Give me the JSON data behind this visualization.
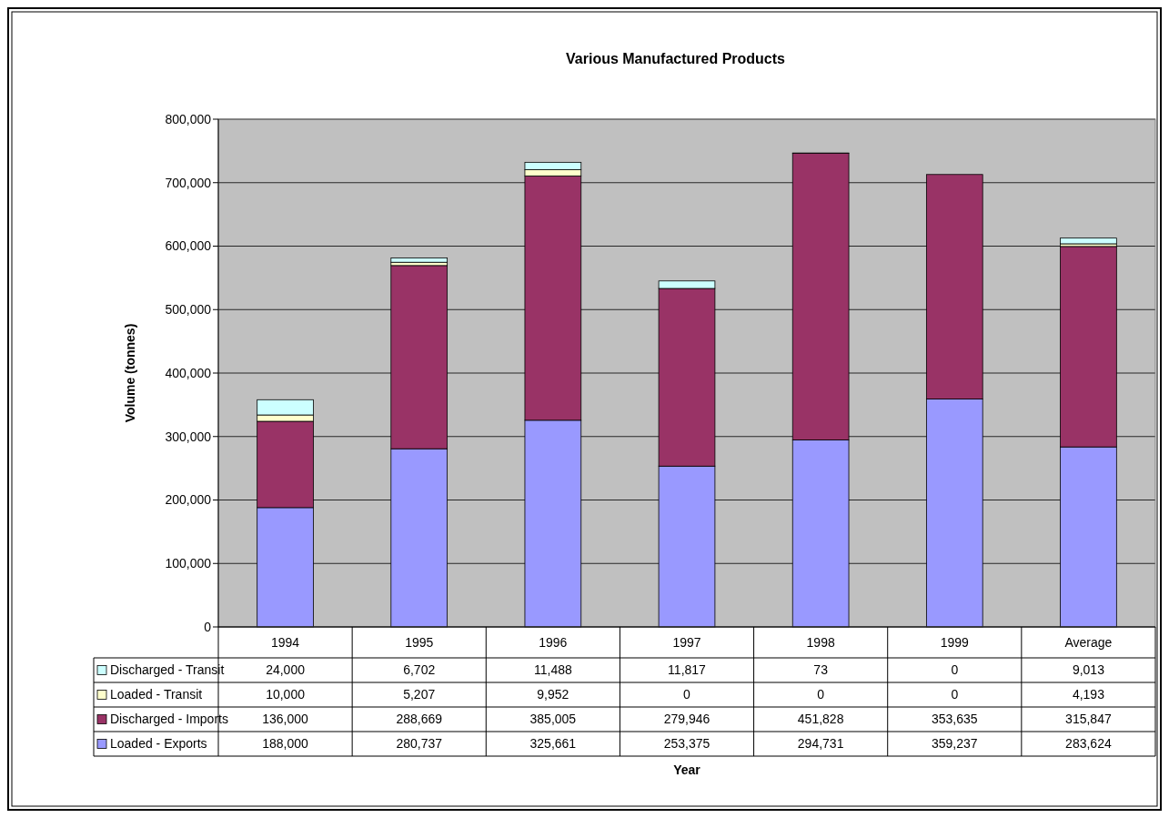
{
  "chart_data": {
    "type": "bar",
    "title": "Various Manufactured Products",
    "annotations": [
      "Year"
    ],
    "ylabel": "Volume (tonnes)",
    "categories": [
      "1994",
      "1995",
      "1996",
      "1997",
      "1998",
      "1999",
      "Average"
    ],
    "series": [
      {
        "name": "Loaded - Exports",
        "color": "#9999ff",
        "values": [
          188000,
          280737,
          325661,
          253375,
          294731,
          359237,
          283624
        ],
        "value_labels": [
          "188,000",
          "280,737",
          "325,661",
          "253,375",
          "294,731",
          "359,237",
          "283,624"
        ]
      },
      {
        "name": "Discharged - Imports",
        "color": "#993366",
        "values": [
          136000,
          288669,
          385005,
          279946,
          451828,
          353635,
          315847
        ],
        "value_labels": [
          "136,000",
          "288,669",
          "385,005",
          "279,946",
          "451,828",
          "353,635",
          "315,847"
        ]
      },
      {
        "name": "Loaded - Transit",
        "color": "#ffffcc",
        "values": [
          10000,
          5207,
          9952,
          0,
          0,
          0,
          4193
        ],
        "value_labels": [
          "10,000",
          "5,207",
          "9,952",
          "0",
          "0",
          "0",
          "4,193"
        ]
      },
      {
        "name": "Discharged - Transit",
        "color": "#ccffff",
        "values": [
          24000,
          6702,
          11488,
          11817,
          73,
          0,
          9013
        ],
        "value_labels": [
          "24,000",
          "6,702",
          "11,488",
          "11,817",
          "73",
          "0",
          "9,013"
        ]
      }
    ],
    "stacked": true,
    "ylim": [
      0,
      800000
    ],
    "yticks": [
      {
        "value": 0,
        "label": "0"
      },
      {
        "value": 100000,
        "label": "100,000"
      },
      {
        "value": 200000,
        "label": "200,000"
      },
      {
        "value": 300000,
        "label": "300,000"
      },
      {
        "value": 400000,
        "label": "400,000"
      },
      {
        "value": 500000,
        "label": "500,000"
      },
      {
        "value": 600000,
        "label": "600,000"
      },
      {
        "value": 700000,
        "label": "700,000"
      },
      {
        "value": 800000,
        "label": "800,000"
      }
    ],
    "grid": "y",
    "legend": "bottom"
  }
}
